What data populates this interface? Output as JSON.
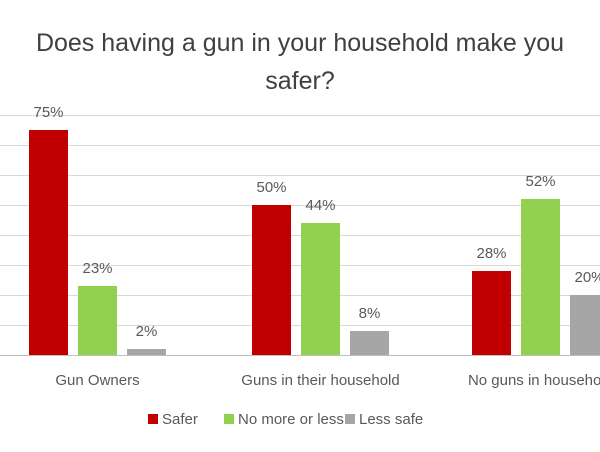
{
  "chart_data": {
    "type": "bar",
    "title": "Does having a gun in your household make you safer?",
    "categories": [
      "Gun Owners",
      "Guns in their household",
      "No guns in household"
    ],
    "series": [
      {
        "name": "Safer",
        "values": [
          75,
          50,
          28
        ],
        "labels": [
          "75%",
          "50%",
          "28%"
        ],
        "color": "#C00000"
      },
      {
        "name": "No more or less",
        "values": [
          23,
          44,
          52
        ],
        "labels": [
          "23%",
          "44%",
          "52%"
        ],
        "color": "#92D050"
      },
      {
        "name": "Less safe",
        "values": [
          2,
          8,
          20
        ],
        "labels": [
          "2%",
          "8%",
          "20%"
        ],
        "color": "#A6A6A6"
      }
    ],
    "ylim": [
      0,
      80
    ],
    "grid": true,
    "legend": "bottom",
    "colors": {
      "grid": "#D9D9D9",
      "text": "#595959",
      "title": "#404040"
    }
  }
}
